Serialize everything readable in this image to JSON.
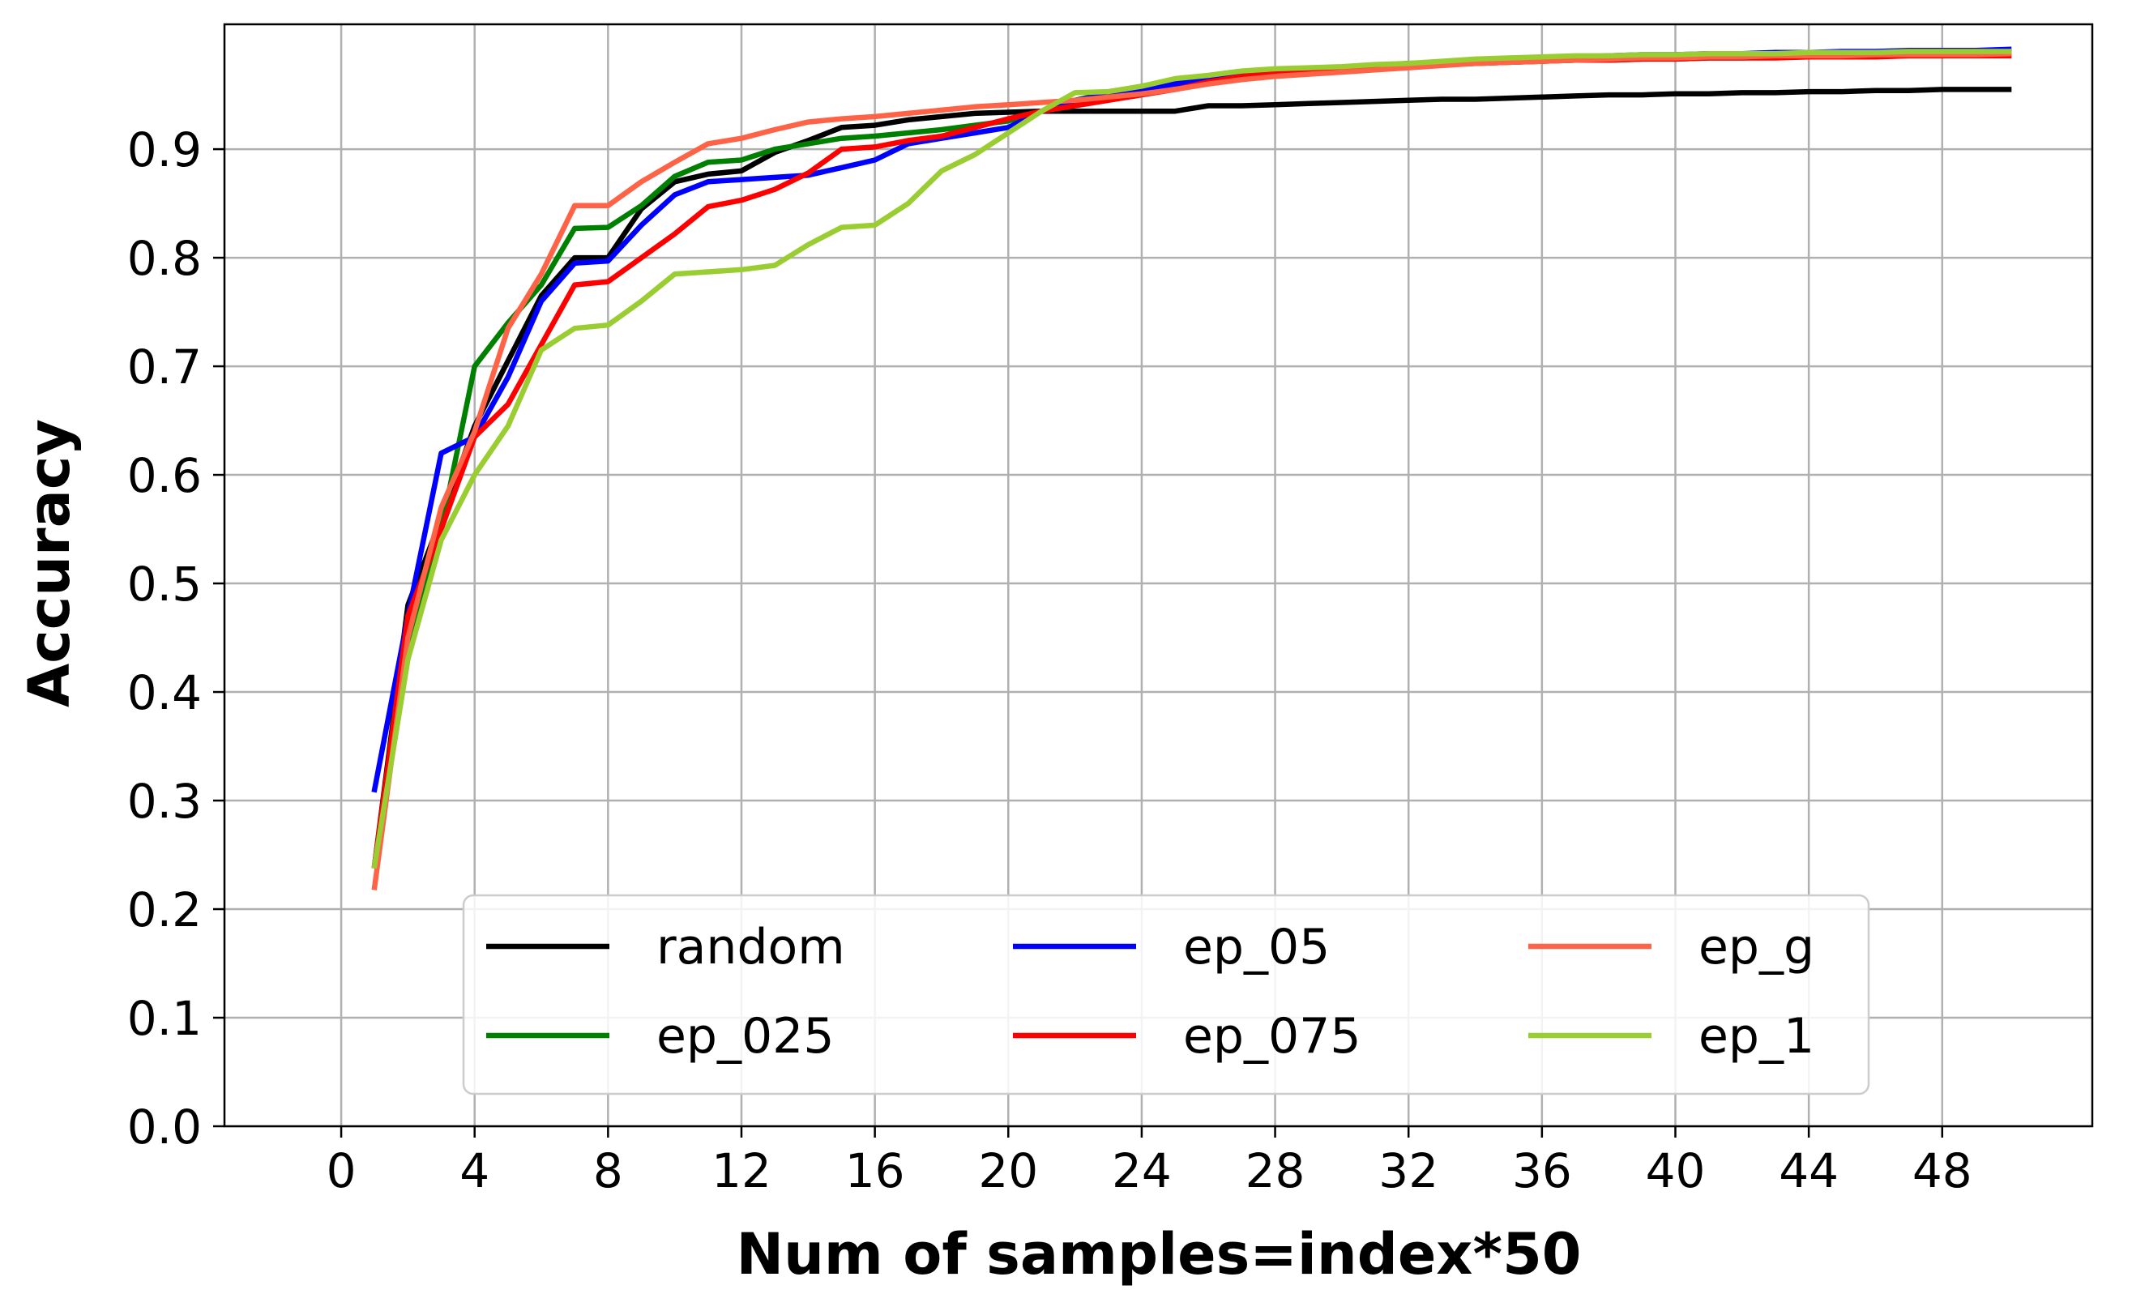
{
  "chart_data": {
    "type": "line",
    "title": "",
    "xlabel": "Num of samples=index*50",
    "ylabel": "Accuracy",
    "xlim": [
      -3.5,
      52.5
    ],
    "ylim": [
      0.0,
      1.015
    ],
    "xticks": [
      0,
      4,
      8,
      12,
      16,
      20,
      24,
      28,
      32,
      36,
      40,
      44,
      48
    ],
    "yticks": [
      0.0,
      0.1,
      0.2,
      0.3,
      0.4,
      0.5,
      0.6,
      0.7,
      0.8,
      0.9
    ],
    "xtick_labels": [
      "0",
      "4",
      "8",
      "12",
      "16",
      "20",
      "24",
      "28",
      "32",
      "36",
      "40",
      "44",
      "48"
    ],
    "ytick_labels": [
      "0.0",
      "0.1",
      "0.2",
      "0.3",
      "0.4",
      "0.5",
      "0.6",
      "0.7",
      "0.8",
      "0.9"
    ],
    "grid": true,
    "legend_position": "lower-center",
    "legend_columns": 3,
    "x": [
      1,
      2,
      3,
      4,
      5,
      6,
      7,
      8,
      9,
      10,
      11,
      12,
      13,
      14,
      15,
      16,
      17,
      18,
      19,
      20,
      21,
      22,
      23,
      24,
      25,
      26,
      27,
      28,
      29,
      30,
      31,
      32,
      33,
      34,
      35,
      36,
      37,
      38,
      39,
      40,
      41,
      42,
      43,
      44,
      45,
      46,
      47,
      48,
      49,
      50
    ],
    "series": [
      {
        "name": "random",
        "color": "#000000",
        "values": [
          0.24,
          0.48,
          0.56,
          0.645,
          0.705,
          0.765,
          0.8,
          0.8,
          0.845,
          0.87,
          0.877,
          0.88,
          0.897,
          0.908,
          0.92,
          0.922,
          0.927,
          0.93,
          0.933,
          0.934,
          0.935,
          0.935,
          0.935,
          0.935,
          0.935,
          0.94,
          0.94,
          0.941,
          0.942,
          0.943,
          0.944,
          0.945,
          0.946,
          0.946,
          0.947,
          0.948,
          0.949,
          0.95,
          0.95,
          0.951,
          0.951,
          0.952,
          0.952,
          0.953,
          0.953,
          0.954,
          0.954,
          0.955,
          0.955,
          0.955
        ]
      },
      {
        "name": "ep_025",
        "color": "#008000",
        "values": [
          0.24,
          0.44,
          0.55,
          0.7,
          0.74,
          0.775,
          0.827,
          0.828,
          0.848,
          0.875,
          0.888,
          0.89,
          0.9,
          0.905,
          0.91,
          0.912,
          0.915,
          0.918,
          0.922,
          0.926,
          0.935,
          0.945,
          0.952,
          0.958,
          0.963,
          0.966,
          0.969,
          0.971,
          0.973,
          0.975,
          0.976,
          0.977,
          0.978,
          0.979,
          0.98,
          0.981,
          0.982,
          0.982,
          0.983,
          0.983,
          0.984,
          0.984,
          0.985,
          0.985,
          0.985,
          0.986,
          0.986,
          0.986,
          0.987,
          0.987
        ]
      },
      {
        "name": "ep_05",
        "color": "#0000ff",
        "values": [
          0.31,
          0.47,
          0.62,
          0.635,
          0.69,
          0.76,
          0.795,
          0.797,
          0.83,
          0.858,
          0.87,
          0.872,
          0.874,
          0.876,
          0.883,
          0.89,
          0.905,
          0.91,
          0.915,
          0.92,
          0.935,
          0.945,
          0.95,
          0.955,
          0.96,
          0.965,
          0.968,
          0.971,
          0.973,
          0.975,
          0.977,
          0.979,
          0.98,
          0.982,
          0.983,
          0.984,
          0.985,
          0.986,
          0.987,
          0.987,
          0.988,
          0.988,
          0.989,
          0.989,
          0.99,
          0.99,
          0.991,
          0.991,
          0.991,
          0.992
        ]
      },
      {
        "name": "ep_075",
        "color": "#ff0000",
        "values": [
          0.24,
          0.47,
          0.55,
          0.635,
          0.665,
          0.72,
          0.775,
          0.778,
          0.8,
          0.822,
          0.847,
          0.853,
          0.863,
          0.878,
          0.9,
          0.902,
          0.908,
          0.912,
          0.92,
          0.928,
          0.935,
          0.94,
          0.945,
          0.95,
          0.955,
          0.962,
          0.967,
          0.97,
          0.972,
          0.974,
          0.976,
          0.977,
          0.978,
          0.979,
          0.98,
          0.981,
          0.982,
          0.982,
          0.983,
          0.983,
          0.984,
          0.984,
          0.984,
          0.985,
          0.985,
          0.985,
          0.986,
          0.986,
          0.986,
          0.986
        ]
      },
      {
        "name": "ep_g",
        "color": "#ff6347",
        "values": [
          0.22,
          0.45,
          0.57,
          0.64,
          0.735,
          0.785,
          0.848,
          0.848,
          0.87,
          0.888,
          0.905,
          0.91,
          0.918,
          0.925,
          0.928,
          0.93,
          0.933,
          0.936,
          0.939,
          0.941,
          0.943,
          0.945,
          0.948,
          0.951,
          0.955,
          0.96,
          0.964,
          0.967,
          0.969,
          0.971,
          0.973,
          0.975,
          0.977,
          0.979,
          0.98,
          0.981,
          0.982,
          0.983,
          0.984,
          0.984,
          0.985,
          0.985,
          0.986,
          0.986,
          0.986,
          0.987,
          0.987,
          0.987,
          0.987,
          0.988
        ]
      },
      {
        "name": "ep_1",
        "color": "#9acd32",
        "values": [
          0.24,
          0.43,
          0.54,
          0.6,
          0.645,
          0.715,
          0.735,
          0.738,
          0.76,
          0.785,
          0.787,
          0.789,
          0.793,
          0.812,
          0.828,
          0.83,
          0.85,
          0.88,
          0.895,
          0.915,
          0.935,
          0.952,
          0.953,
          0.958,
          0.965,
          0.968,
          0.972,
          0.974,
          0.975,
          0.976,
          0.978,
          0.979,
          0.981,
          0.983,
          0.984,
          0.985,
          0.986,
          0.986,
          0.987,
          0.987,
          0.988,
          0.988,
          0.988,
          0.989,
          0.989,
          0.989,
          0.99,
          0.99,
          0.99,
          0.99
        ]
      }
    ]
  }
}
